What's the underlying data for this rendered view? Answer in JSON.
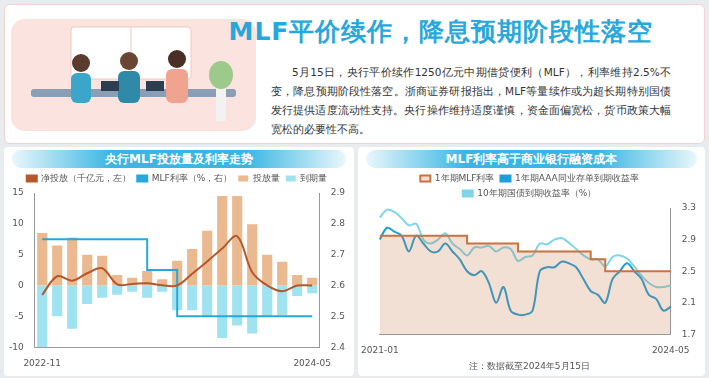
{
  "header": {
    "title": "MLF平价续作，降息预期阶段性落空",
    "text": "5月15日，央行平价续作1250亿元中期借贷便利（MLF），利率维持2.5%不变，降息预期阶段性落空。浙商证券研报指出，MLF等量续作或为超长期特别国债发行提供适度流动性支持。央行操作维持适度谨慎，资金面偏宽松，货币政策大幅宽松的必要性不高。"
  },
  "chart_data": [
    {
      "type": "bar",
      "title": "央行MLF投放量及利率走势",
      "categories": [
        "2022-11",
        null,
        null,
        null,
        null,
        null,
        null,
        null,
        null,
        null,
        null,
        null,
        null,
        null,
        null,
        null,
        null,
        null,
        "2024-05"
      ],
      "series": [
        {
          "name": "投放量",
          "type": "bar",
          "color": "#ebb98f",
          "values": [
            8.5,
            6.5,
            7.79,
            4.99,
            4.81,
            1.7,
            1.25,
            2.37,
            1.03,
            4.01,
            5.91,
            8.89,
            14.5,
            14.5,
            9.95,
            5.0,
            3.87,
            1.7,
            1.25
          ]
        },
        {
          "name": "到期量",
          "type": "bar",
          "color": "#9fe3f0",
          "values": [
            -10,
            -5,
            -7,
            -3,
            -2,
            -1.5,
            -1,
            -2,
            -1,
            -4,
            -4,
            -5,
            -8.5,
            -6.5,
            -7.79,
            -4.99,
            -4.81,
            -1.7,
            -1.25
          ]
        },
        {
          "name": "净投放（千亿元，左）",
          "type": "line",
          "color": "#b6572b",
          "marker": "none",
          "line_style": "smooth",
          "values": [
            -1.5,
            1.5,
            0.79,
            1.99,
            2.81,
            0.2,
            0.25,
            0.37,
            0.03,
            0.01,
            1.91,
            3.89,
            6.0,
            8.0,
            2.16,
            0.01,
            -0.94,
            0,
            0
          ]
        },
        {
          "name": "MLF利率（%，右）",
          "type": "line",
          "color": "#27a8dc",
          "marker": "none",
          "line_style": "step",
          "axis": "y2",
          "values": [
            2.75,
            2.75,
            2.75,
            2.75,
            2.75,
            2.75,
            2.75,
            2.65,
            2.65,
            2.5,
            2.5,
            2.5,
            2.5,
            2.5,
            2.5,
            2.5,
            2.5,
            2.5,
            2.5
          ]
        }
      ],
      "ylim": [
        -10,
        15
      ],
      "yticks": [
        -10,
        -5,
        0,
        5,
        10,
        15
      ],
      "y2lim": [
        2.4,
        2.9
      ],
      "y2ticks": [
        2.4,
        2.5,
        2.6,
        2.7,
        2.8,
        2.9
      ],
      "stacked": true,
      "grid": false,
      "legend": "top"
    },
    {
      "type": "line",
      "title": "MLF利率高于商业银行融资成本",
      "annotation": "注：数据截至2024年5月15日",
      "categories": [
        "2021-01",
        null,
        null,
        null,
        null,
        null,
        null,
        null,
        null,
        null,
        null,
        null,
        null,
        null,
        null,
        null,
        null,
        null,
        null,
        null,
        null,
        null,
        null,
        null,
        null,
        null,
        null,
        null,
        null,
        null,
        null,
        null,
        null,
        null,
        null,
        null,
        null,
        null,
        null,
        null,
        "2024-05"
      ],
      "series": [
        {
          "name": "1年期MLF利率",
          "type": "area",
          "color": "#c9733f",
          "marker": "none",
          "line_style": "step",
          "values": [
            2.95,
            2.95,
            2.95,
            2.95,
            2.95,
            2.95,
            2.95,
            2.95,
            2.95,
            2.95,
            2.95,
            2.95,
            2.85,
            2.85,
            2.85,
            2.85,
            2.85,
            2.85,
            2.85,
            2.75,
            2.75,
            2.75,
            2.75,
            2.75,
            2.75,
            2.75,
            2.75,
            2.75,
            2.75,
            2.65,
            2.65,
            2.5,
            2.5,
            2.5,
            2.5,
            2.5,
            2.5,
            2.5,
            2.5,
            2.5,
            2.5
          ]
        },
        {
          "name": "1年期AAA同业存单到期收益率",
          "type": "line",
          "color": "#1c9fd8",
          "marker": "none",
          "line_style": "smooth",
          "values": [
            2.9,
            3.05,
            3.0,
            2.95,
            2.75,
            2.95,
            2.85,
            2.75,
            2.75,
            2.85,
            2.75,
            2.65,
            2.5,
            2.45,
            2.5,
            2.35,
            2.1,
            2.3,
            2.0,
            1.95,
            1.95,
            2.0,
            2.5,
            2.55,
            2.55,
            2.62,
            2.6,
            2.55,
            2.4,
            2.25,
            2.2,
            2.1,
            2.4,
            2.5,
            2.6,
            2.5,
            2.4,
            2.2,
            2.15,
            2.0,
            2.05
          ]
        },
        {
          "name": "10年期国债到期收益率（%）",
          "type": "line",
          "color": "#7fd6ea",
          "marker": "none",
          "line_style": "smooth",
          "values": [
            3.18,
            3.28,
            3.25,
            3.17,
            3.08,
            3.1,
            2.9,
            2.85,
            2.9,
            2.98,
            2.85,
            2.78,
            2.7,
            2.8,
            2.8,
            2.82,
            2.75,
            2.8,
            2.78,
            2.63,
            2.68,
            2.7,
            2.85,
            2.84,
            2.9,
            2.92,
            2.86,
            2.78,
            2.7,
            2.65,
            2.65,
            2.56,
            2.68,
            2.7,
            2.66,
            2.56,
            2.44,
            2.35,
            2.3,
            2.3,
            2.32
          ]
        }
      ],
      "ylim": [
        1.7,
        3.3
      ],
      "yticks": [
        1.7,
        2.1,
        2.5,
        2.9,
        3.3
      ],
      "grid": false,
      "legend": "top"
    }
  ]
}
